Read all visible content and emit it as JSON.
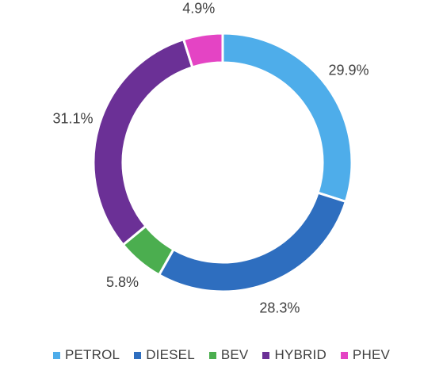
{
  "chart_data": {
    "type": "pie",
    "subtype": "donut",
    "title": "",
    "legend_position": "bottom",
    "slices": [
      {
        "name": "PETROL",
        "value": 29.9,
        "label": "29.9%",
        "color": "#4EADEA"
      },
      {
        "name": "DIESEL",
        "value": 28.3,
        "label": "28.3%",
        "color": "#2E6EBF"
      },
      {
        "name": "BEV",
        "value": 5.8,
        "label": "5.8%",
        "color": "#4BAE4F"
      },
      {
        "name": "HYBRID",
        "value": 31.1,
        "label": "31.1%",
        "color": "#6B3096"
      },
      {
        "name": "PHEV",
        "value": 4.9,
        "label": "4.9%",
        "color": "#E444C4"
      }
    ]
  },
  "legend": {
    "items": [
      {
        "label": "PETROL",
        "color": "#4EADEA"
      },
      {
        "label": "DIESEL",
        "color": "#2E6EBF"
      },
      {
        "label": "BEV",
        "color": "#4BAE4F"
      },
      {
        "label": "HYBRID",
        "color": "#6B3096"
      },
      {
        "label": "PHEV",
        "color": "#E444C4"
      }
    ]
  }
}
